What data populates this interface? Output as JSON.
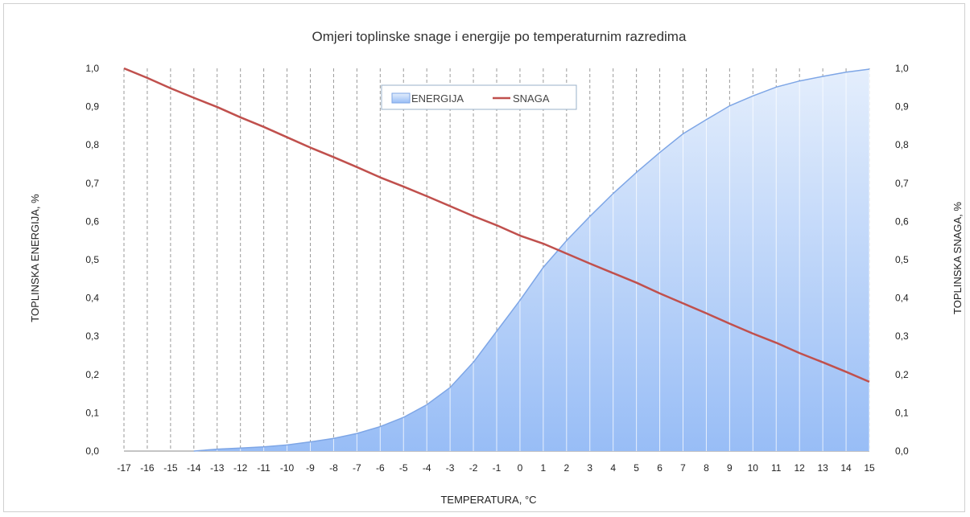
{
  "chart_data": {
    "type": "area",
    "title": "Omjeri toplinske snage i energije po temperaturnim razredima",
    "xlabel": "TEMPERATURA, °C",
    "ylabel_left": "TOPLINSKA ENERGIJA, %",
    "ylabel_right": "TOPLINSKA SNAGA, %",
    "x": [
      -17,
      -16,
      -15,
      -14,
      -13,
      -12,
      -11,
      -10,
      -9,
      -8,
      -7,
      -6,
      -5,
      -4,
      -3,
      -2,
      -1,
      0,
      1,
      2,
      3,
      4,
      5,
      6,
      7,
      8,
      9,
      10,
      11,
      12,
      13,
      14,
      15
    ],
    "x_tick_labels": [
      "-17",
      "-16",
      "-15",
      "-14",
      "-13",
      "-12",
      "-11",
      "-10",
      "-9",
      "-8",
      "-7",
      "-6",
      "-5",
      "-4",
      "-3",
      "-2",
      "-1",
      "0",
      "1",
      "2",
      "3",
      "4",
      "5",
      "6",
      "7",
      "8",
      "9",
      "10",
      "11",
      "12",
      "13",
      "14",
      "15"
    ],
    "y_tick_labels": [
      "0,0",
      "0,1",
      "0,2",
      "0,3",
      "0,4",
      "0,5",
      "0,6",
      "0,7",
      "0,8",
      "0,9",
      "1,0"
    ],
    "ylim": [
      0,
      1
    ],
    "grid": "vertical dashed",
    "legend_position": "top-center",
    "series": [
      {
        "name": "ENERGIJA",
        "kind": "area",
        "color": "#7ea6e6",
        "values": [
          null,
          null,
          null,
          0.0,
          0.005,
          0.008,
          0.011,
          0.016,
          0.024,
          0.033,
          0.046,
          0.064,
          0.088,
          0.121,
          0.166,
          0.232,
          0.313,
          0.394,
          0.48,
          0.55,
          0.613,
          0.673,
          0.728,
          0.78,
          0.829,
          0.866,
          0.902,
          0.928,
          0.951,
          0.967,
          0.979,
          0.99,
          0.998
        ]
      },
      {
        "name": "SNAGA",
        "kind": "line",
        "color": "#c0504d",
        "values": [
          1.0,
          0.975,
          0.948,
          0.923,
          0.899,
          0.872,
          0.847,
          0.82,
          0.793,
          0.768,
          0.742,
          0.715,
          0.691,
          0.666,
          0.64,
          0.614,
          0.59,
          0.563,
          0.542,
          0.516,
          0.49,
          0.465,
          0.44,
          0.412,
          0.386,
          0.36,
          0.333,
          0.307,
          0.283,
          0.256,
          0.232,
          0.207,
          0.181
        ]
      }
    ]
  }
}
